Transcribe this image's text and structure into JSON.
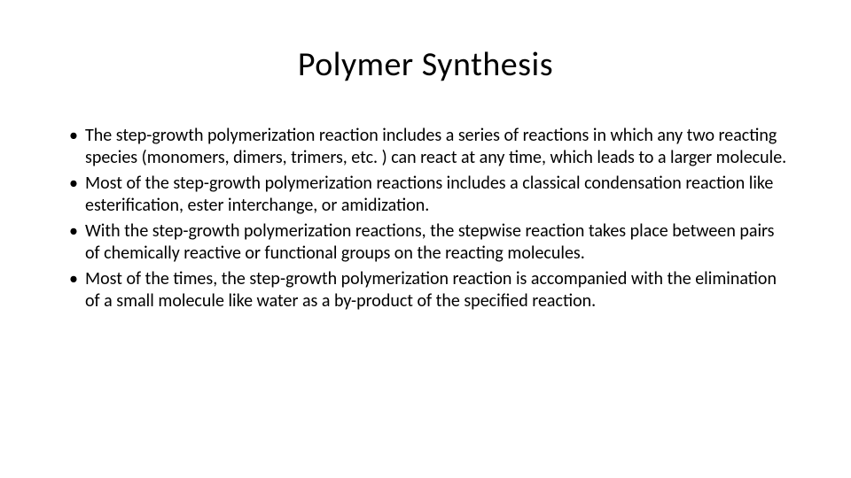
{
  "slide": {
    "title": "Polymer Synthesis",
    "title_fontsize": 38,
    "title_fontweight": 400,
    "title_color": "#000000",
    "body_fontsize": 20,
    "body_color": "#000000",
    "background_color": "#ffffff",
    "bullets": [
      "The step-growth polymerization reaction includes a series of reactions in which any two reacting species (monomers, dimers, trimers, etc. ) can react at any time, which leads to a larger molecule.",
      "Most of the step-growth polymerization reactions includes a classical condensation reaction like esterification, ester interchange, or amidization.",
      "With the step-growth polymerization reactions, the stepwise reaction takes place between pairs of chemically reactive or functional groups on the reacting molecules.",
      "Most of the times, the step-growth polymerization reaction is accompanied with the elimination of a small molecule like water as a by-product of the specified reaction."
    ]
  }
}
